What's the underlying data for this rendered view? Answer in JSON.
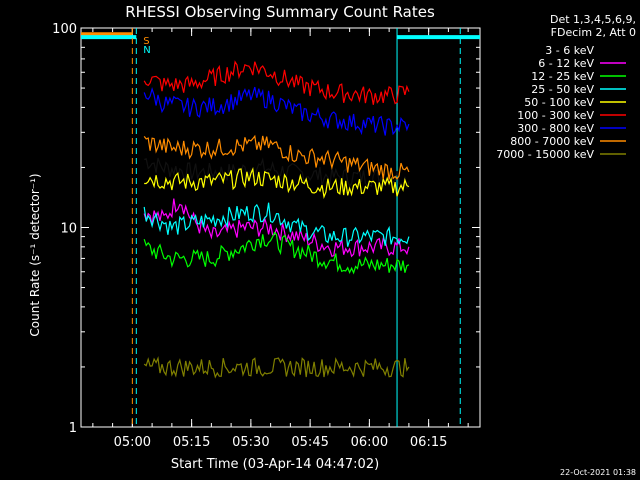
{
  "chart_data": {
    "type": "line",
    "title": "RHESSI Observing Summary Count Rates",
    "xlabel": "Start Time (03-Apr-14 04:47:02)",
    "ylabel": "Count Rate (s⁻¹ detector⁻¹)",
    "y_scale": "log",
    "ylim": [
      1,
      100
    ],
    "y_ticks": [
      {
        "value": 1,
        "label": "1"
      },
      {
        "value": 10,
        "label": "10"
      },
      {
        "value": 100,
        "label": "100"
      }
    ],
    "x_ticks": [
      {
        "value": "05:00",
        "label": "05:00"
      },
      {
        "value": "05:15",
        "label": "05:15"
      },
      {
        "value": "05:30",
        "label": "05:30"
      },
      {
        "value": "05:45",
        "label": "05:45"
      },
      {
        "value": "06:00",
        "label": "06:00"
      },
      {
        "value": "06:15",
        "label": "06:15"
      }
    ],
    "xlim": [
      "04:47",
      "06:28"
    ],
    "legend_position": "right",
    "legend_header": [
      "Det 1,3,4,5,6,9,",
      "FDecim 2, Att 0"
    ],
    "annotations": [
      {
        "text": "S",
        "color": "#ff8c00",
        "time": "05:02"
      },
      {
        "text": "N",
        "color": "#00ffff",
        "time": "05:02"
      }
    ],
    "markers": [
      {
        "type": "dashed-vertical",
        "color": "#ff8c00",
        "time": "05:00"
      },
      {
        "type": "dashed-vertical",
        "color": "#00ffff",
        "time": "05:01"
      },
      {
        "type": "solid-vertical",
        "color": "#00ffff",
        "time": "06:07"
      },
      {
        "type": "dashed-vertical",
        "color": "#00ffff",
        "time": "06:23"
      }
    ],
    "state_bars": [
      {
        "color": "#ff8c00",
        "value": 93,
        "from": "04:47",
        "to": "05:00"
      },
      {
        "color": "#00ffff",
        "value": 90,
        "from": "04:47",
        "to": "05:01"
      },
      {
        "color": "#00ffff",
        "value": 90,
        "from": "06:07",
        "to": "06:28"
      }
    ],
    "series": [
      {
        "name": "3 - 6 keV",
        "color": "#000000",
        "x": [
          "05:03",
          "05:08",
          "05:15",
          "05:25",
          "05:32",
          "05:40",
          "05:50",
          "06:00",
          "06:08",
          "06:10"
        ],
        "values": [
          22,
          20,
          19,
          19,
          20,
          19,
          18,
          18,
          18,
          17
        ]
      },
      {
        "name": "6 - 12 keV",
        "color": "#ff00ff",
        "x": [
          "05:03",
          "05:08",
          "05:12",
          "05:15",
          "05:20",
          "05:28",
          "05:35",
          "05:42",
          "05:50",
          "06:00",
          "06:08",
          "06:10"
        ],
        "values": [
          12,
          11,
          14,
          11,
          9,
          10,
          10,
          9,
          8,
          8,
          8,
          8
        ]
      },
      {
        "name": "12 - 25 keV",
        "color": "#00ff00",
        "x": [
          "05:03",
          "05:10",
          "05:20",
          "05:28",
          "05:33",
          "05:40",
          "05:48",
          "05:55",
          "06:05",
          "06:10"
        ],
        "values": [
          8,
          7,
          7,
          8,
          9,
          8,
          7,
          6.5,
          6.5,
          6.5
        ]
      },
      {
        "name": "25 - 50 keV",
        "color": "#00ffff",
        "x": [
          "05:03",
          "05:10",
          "05:20",
          "05:30",
          "05:35",
          "05:42",
          "05:50",
          "06:00",
          "06:08",
          "06:10"
        ],
        "values": [
          12,
          10,
          11,
          12,
          12,
          10,
          9,
          9,
          9,
          9
        ]
      },
      {
        "name": "50 - 100 keV",
        "color": "#ffff00",
        "x": [
          "05:03",
          "05:10",
          "05:20",
          "05:30",
          "05:40",
          "05:48",
          "05:55",
          "06:05",
          "06:10"
        ],
        "values": [
          18,
          17,
          17,
          18,
          17,
          16,
          16,
          16,
          16
        ]
      },
      {
        "name": "100 - 300 keV",
        "color": "#ff0000",
        "x": [
          "05:03",
          "05:08",
          "05:15",
          "05:22",
          "05:30",
          "05:35",
          "05:42",
          "05:50",
          "06:00",
          "06:06",
          "06:10"
        ],
        "values": [
          57,
          52,
          52,
          58,
          65,
          60,
          52,
          48,
          46,
          46,
          48
        ]
      },
      {
        "name": "300 - 800 keV",
        "color": "#0000ff",
        "x": [
          "05:03",
          "05:08",
          "05:15",
          "05:22",
          "05:30",
          "05:35",
          "05:42",
          "05:50",
          "06:00",
          "06:06",
          "06:10"
        ],
        "values": [
          48,
          42,
          40,
          41,
          46,
          44,
          38,
          35,
          33,
          32,
          33
        ]
      },
      {
        "name": "800 - 7000 keV",
        "color": "#ff8c00",
        "x": [
          "05:03",
          "05:10",
          "05:20",
          "05:30",
          "05:35",
          "05:42",
          "05:50",
          "06:00",
          "06:08",
          "06:10"
        ],
        "values": [
          27,
          25,
          25,
          26,
          26,
          23,
          22,
          20,
          19,
          19
        ]
      },
      {
        "name": "7000 - 15000 keV",
        "color": "#808000",
        "x": [
          "05:03",
          "05:10",
          "05:20",
          "05:30",
          "05:40",
          "05:50",
          "06:00",
          "06:10"
        ],
        "values": [
          2,
          2,
          2,
          2,
          2,
          2,
          2,
          2
        ]
      }
    ]
  },
  "footer": {
    "timestamp": "22-Oct-2021 01:38"
  }
}
